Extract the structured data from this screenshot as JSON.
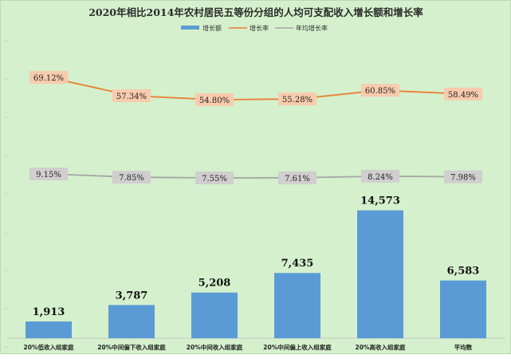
{
  "chart_data": {
    "type": "bar",
    "title": "2020年相比2014年农村居民五等份分组的人均可支配收入增长额和增长率",
    "categories": [
      "20%低收入组家庭",
      "20%中间偏下收入组家庭",
      "20%中间收入组家庭",
      "20%中间偏上收入组家庭",
      "20%高收入组家庭",
      "平均数"
    ],
    "series": [
      {
        "name": "增长额",
        "type": "bar",
        "values": [
          1913,
          3787,
          5208,
          7435,
          14573,
          6583
        ],
        "labels": [
          "1,913",
          "3,787",
          "5,208",
          "7,435",
          "14,573",
          "6,583"
        ],
        "color": "#5b9bd5"
      },
      {
        "name": "增长率",
        "type": "line",
        "values": [
          69.12,
          57.34,
          54.8,
          55.28,
          60.85,
          58.49
        ],
        "labels": [
          "69.12%",
          "57.34%",
          "54.80%",
          "55.28%",
          "60.85%",
          "58.49%"
        ],
        "color": "#ed7d31",
        "label_bg": "#f8cbad"
      },
      {
        "name": "年均增长率",
        "type": "line",
        "values": [
          9.15,
          7.85,
          7.55,
          7.61,
          8.24,
          7.98
        ],
        "labels": [
          "9.15%",
          "7.85%",
          "7.55%",
          "7.61%",
          "8.24%",
          "7.98%"
        ],
        "color": "#a5a5a5",
        "label_bg": "#d0cece"
      }
    ],
    "legend_position": "top",
    "grid": false
  }
}
